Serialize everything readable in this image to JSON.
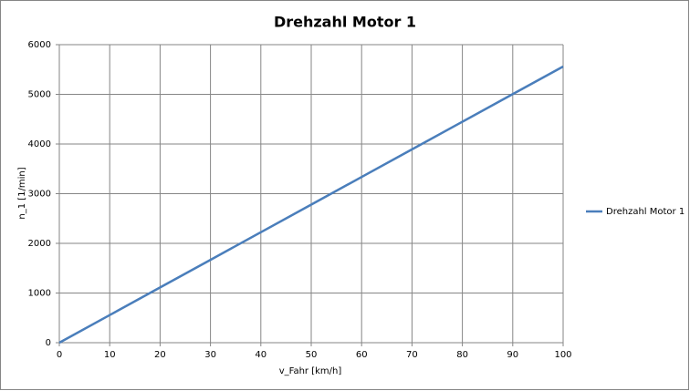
{
  "chart_data": {
    "type": "line",
    "title": "Drehzahl Motor 1",
    "x_label": "v_Fahr  [km/h]",
    "y_label": "n_1 [1/min]",
    "x": [
      0,
      10,
      20,
      30,
      40,
      50,
      60,
      70,
      80,
      90,
      100
    ],
    "series": [
      {
        "name": "Drehzahl Motor 1",
        "color": "#4a7ebb",
        "values": [
          0,
          556,
          1112,
          1668,
          2224,
          2780,
          3336,
          3892,
          4448,
          5004,
          5560
        ]
      }
    ],
    "xlim": [
      0,
      100
    ],
    "xticks": [
      0,
      10,
      20,
      30,
      40,
      50,
      60,
      70,
      80,
      90,
      100
    ],
    "ylim": [
      0,
      6000
    ],
    "yticks": [
      0,
      1000,
      2000,
      3000,
      4000,
      5000,
      6000
    ],
    "grid": true,
    "legend": "right"
  }
}
